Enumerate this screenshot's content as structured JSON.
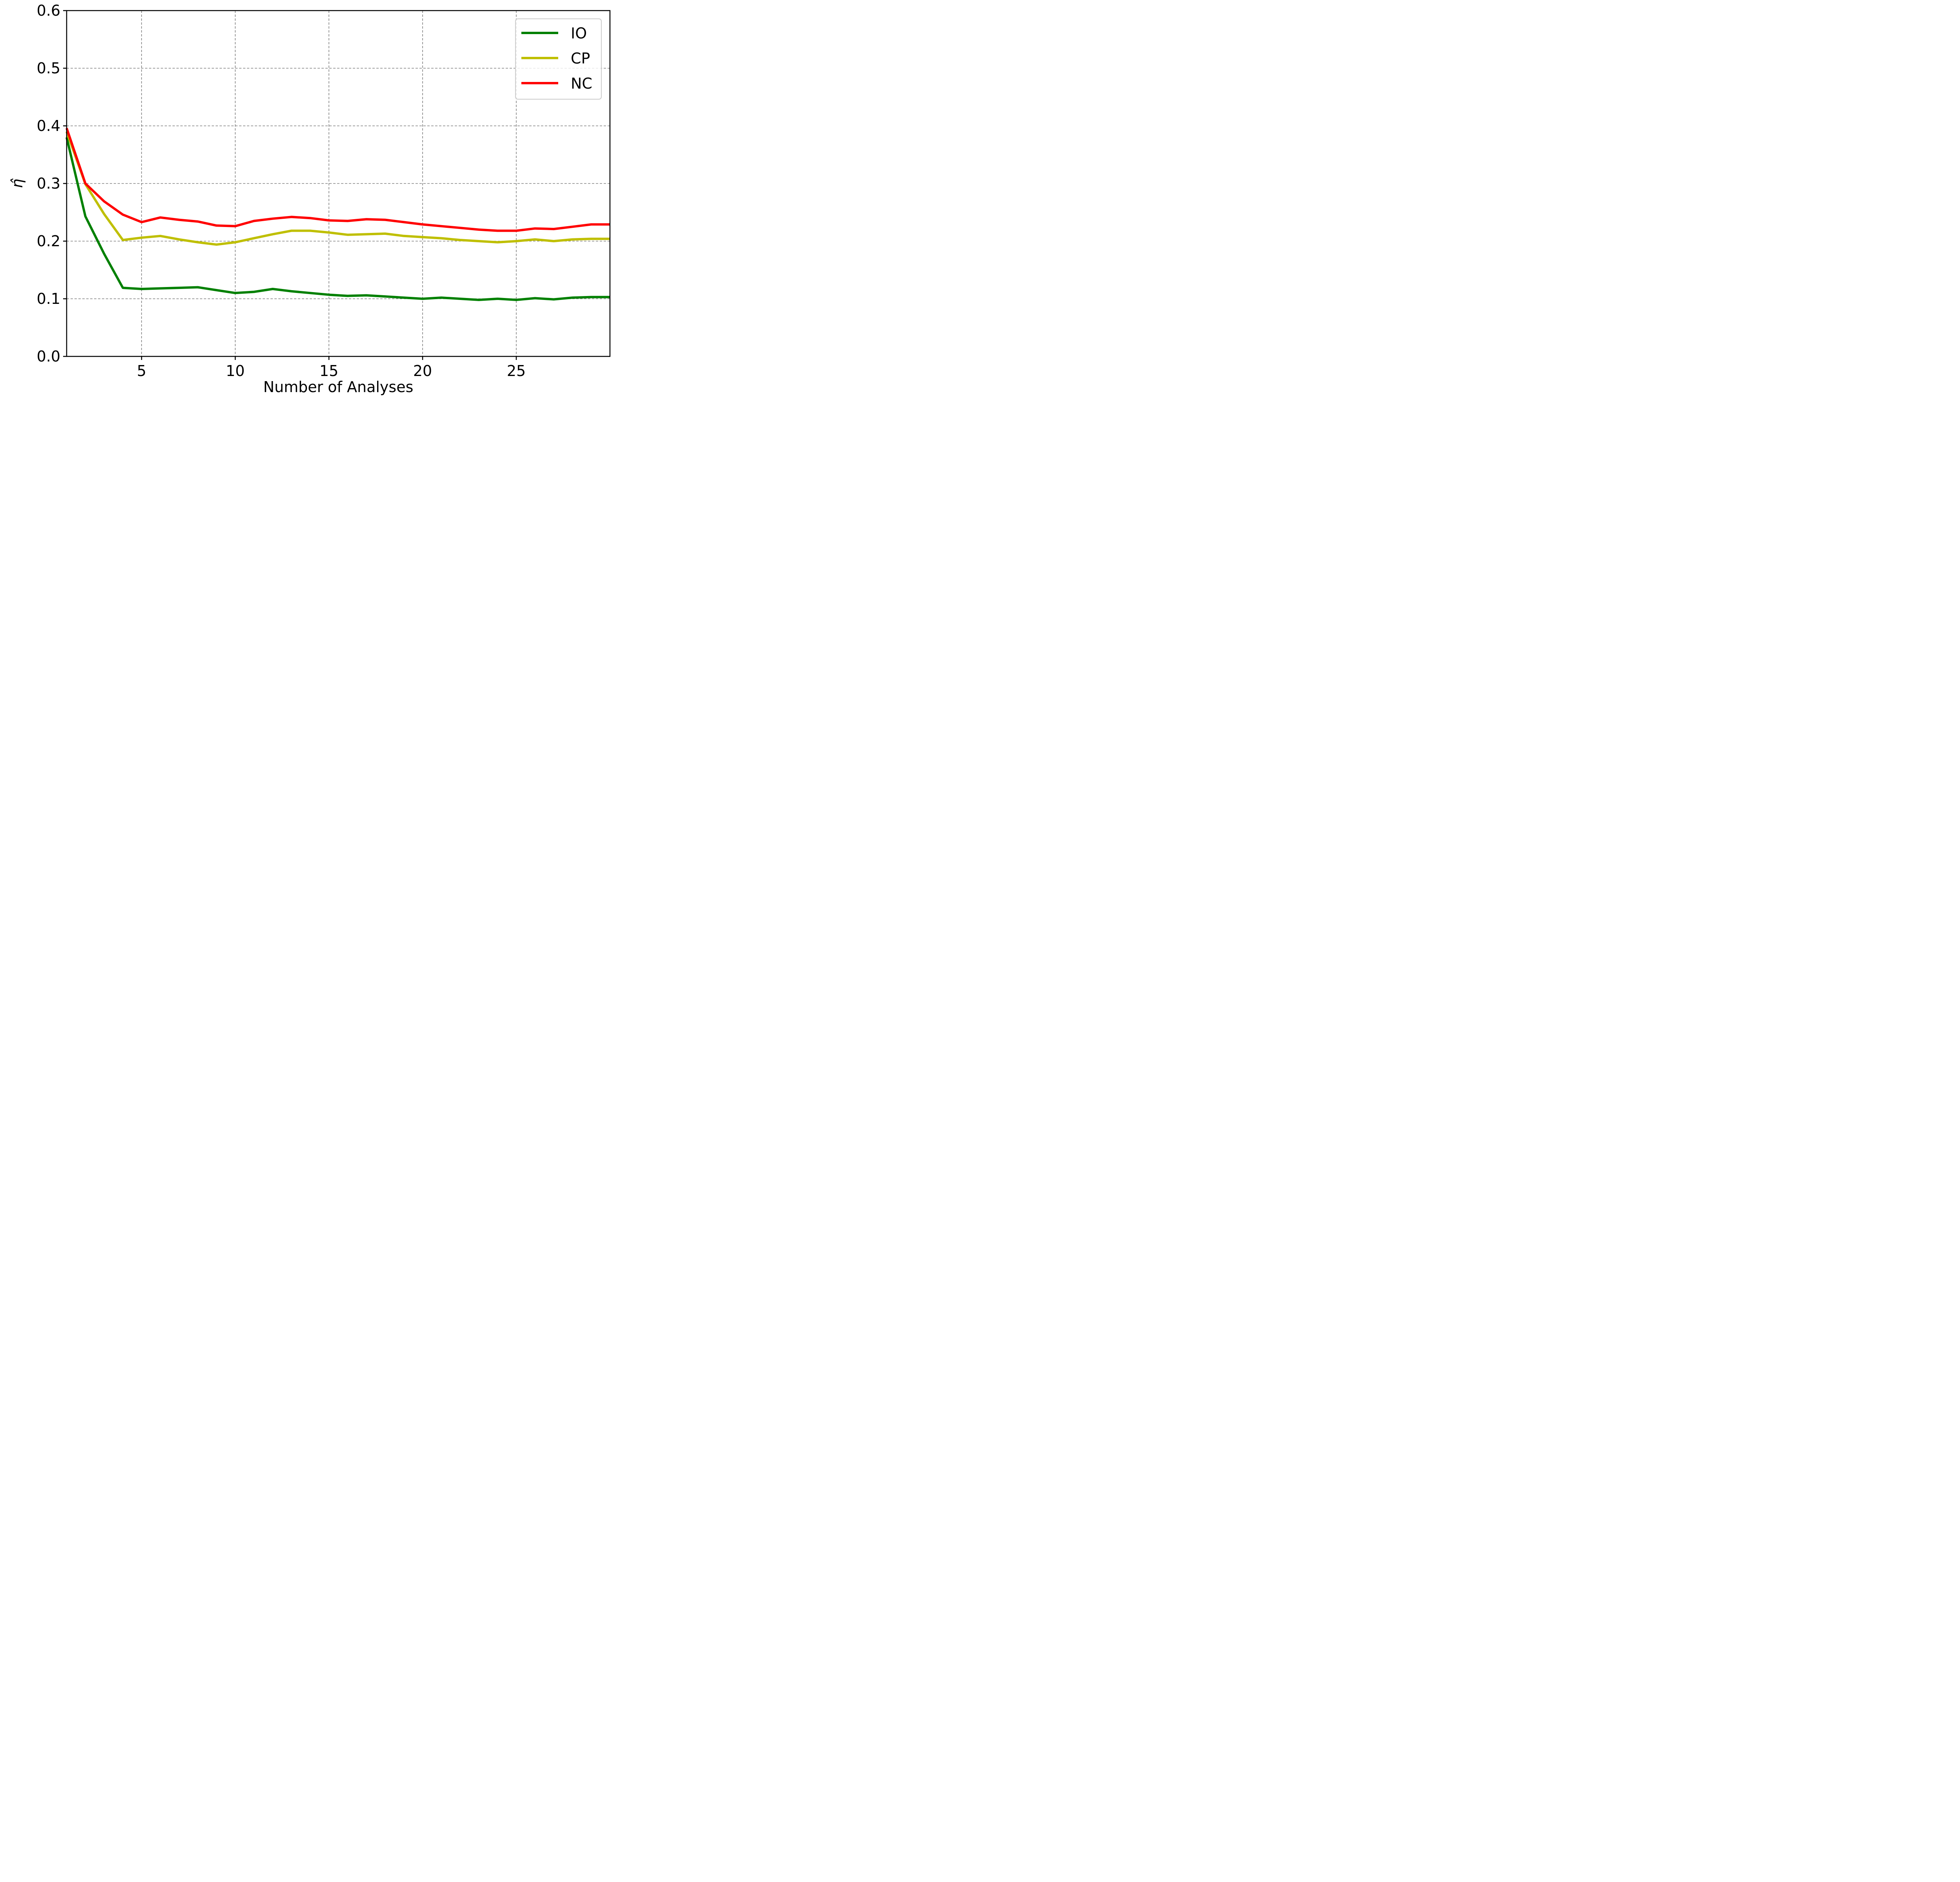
{
  "chart_data": {
    "type": "line",
    "title": "",
    "xlabel": "Number of Analyses",
    "ylabel": "η̂",
    "xlim": [
      1,
      30
    ],
    "ylim": [
      0.0,
      0.6
    ],
    "xticks": [
      5,
      10,
      15,
      20,
      25
    ],
    "xtick_labels": [
      "5",
      "10",
      "15",
      "20",
      "25"
    ],
    "yticks": [
      0.0,
      0.1,
      0.2,
      0.3,
      0.4,
      0.5,
      0.6
    ],
    "ytick_labels": [
      "0.0",
      "0.1",
      "0.2",
      "0.3",
      "0.4",
      "0.5",
      "0.6"
    ],
    "grid": true,
    "legend_position": "top-right",
    "x": [
      1,
      2,
      3,
      4,
      5,
      6,
      7,
      8,
      9,
      10,
      11,
      12,
      13,
      14,
      15,
      16,
      17,
      18,
      19,
      20,
      21,
      22,
      23,
      24,
      25,
      26,
      27,
      28,
      29,
      30
    ],
    "series": [
      {
        "name": "IO",
        "color": "#008000",
        "values": [
          0.38,
          0.243,
          0.178,
          0.119,
          0.117,
          0.118,
          0.119,
          0.12,
          0.115,
          0.11,
          0.112,
          0.117,
          0.113,
          0.11,
          0.107,
          0.105,
          0.106,
          0.104,
          0.102,
          0.1,
          0.102,
          0.1,
          0.098,
          0.1,
          0.098,
          0.101,
          0.099,
          0.102,
          0.103,
          0.103
        ]
      },
      {
        "name": "CP",
        "color": "#bfbf00",
        "values": [
          0.39,
          0.299,
          0.247,
          0.202,
          0.206,
          0.209,
          0.203,
          0.198,
          0.194,
          0.198,
          0.205,
          0.212,
          0.218,
          0.218,
          0.215,
          0.211,
          0.212,
          0.213,
          0.209,
          0.207,
          0.205,
          0.202,
          0.2,
          0.198,
          0.2,
          0.203,
          0.2,
          0.203,
          0.204,
          0.204
        ]
      },
      {
        "name": "NC",
        "color": "#ff0000",
        "values": [
          0.396,
          0.3,
          0.269,
          0.246,
          0.233,
          0.241,
          0.237,
          0.234,
          0.227,
          0.226,
          0.235,
          0.239,
          0.242,
          0.24,
          0.236,
          0.235,
          0.238,
          0.237,
          0.233,
          0.229,
          0.226,
          0.223,
          0.22,
          0.218,
          0.218,
          0.222,
          0.221,
          0.225,
          0.229,
          0.229
        ]
      }
    ]
  }
}
